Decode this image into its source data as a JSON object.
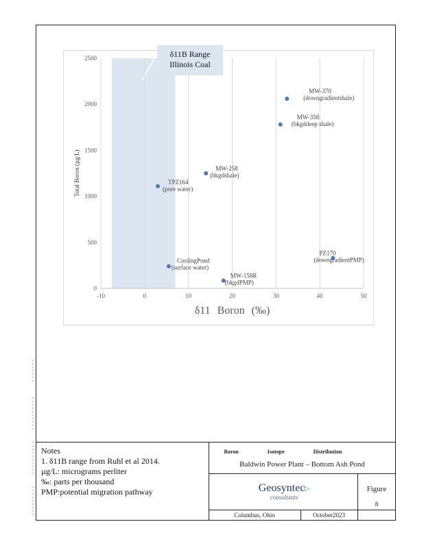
{
  "chart_data": {
    "type": "scatter",
    "title": "",
    "xlabel": "δ11 Boron (‰)",
    "ylabel": "Total Boron (µg/L)",
    "xlim": [
      -10,
      50
    ],
    "ylim": [
      0,
      2500
    ],
    "x_ticks": [
      "-10",
      "0",
      "10",
      "20",
      "30",
      "40",
      "50"
    ],
    "y_ticks": [
      "0",
      "500",
      "1000",
      "1500",
      "2000",
      "2500"
    ],
    "grid": "vertical",
    "shaded_range": {
      "x_from": -7.5,
      "x_to": 7,
      "label_line1": "δ11B Range",
      "label_line2": "Illinois Coal",
      "color": "#dce6f0"
    },
    "marker_color": "#4a78b5",
    "points": [
      {
        "x": 32.5,
        "y": 2060,
        "label1": "MW-370",
        "label2": "(downgradientshale)"
      },
      {
        "x": 31,
        "y": 1780,
        "label1": "MW-358",
        "label2": "(bkgddeep shale)"
      },
      {
        "x": 14,
        "y": 1250,
        "label1": "MW-258",
        "label2": "(bkgdshale)"
      },
      {
        "x": 3,
        "y": 1110,
        "label1": "TPZ164",
        "label2": "(pore water)"
      },
      {
        "x": 43,
        "y": 330,
        "label1": "PZ170",
        "label2": "(downgradientPMP)"
      },
      {
        "x": 5.5,
        "y": 240,
        "label1": "CoolingPond",
        "label2": "(surface water)"
      },
      {
        "x": 18,
        "y": 85,
        "label1": "MW-158R",
        "label2": "(bkgdPMP)"
      }
    ]
  },
  "notes": {
    "heading": "Notes",
    "line1": "1.  δ11B range from Ruhl et al 2014.",
    "line2": "µg/L: micrograms perliter",
    "line3": "‰: parts per thousand",
    "line4": "PMP:potential migration pathway"
  },
  "title_block": {
    "figure_title_a": "Boron Isotope",
    "figure_title_b": "Distribution",
    "plant": "Baldwin Power Plant – Bottom Ash Pond",
    "company": "Geosyntec",
    "company_sub": "consultants",
    "figure_label": "Figure",
    "figure_number": "8",
    "location": "Columbus, Ohio",
    "date": "October2023"
  }
}
